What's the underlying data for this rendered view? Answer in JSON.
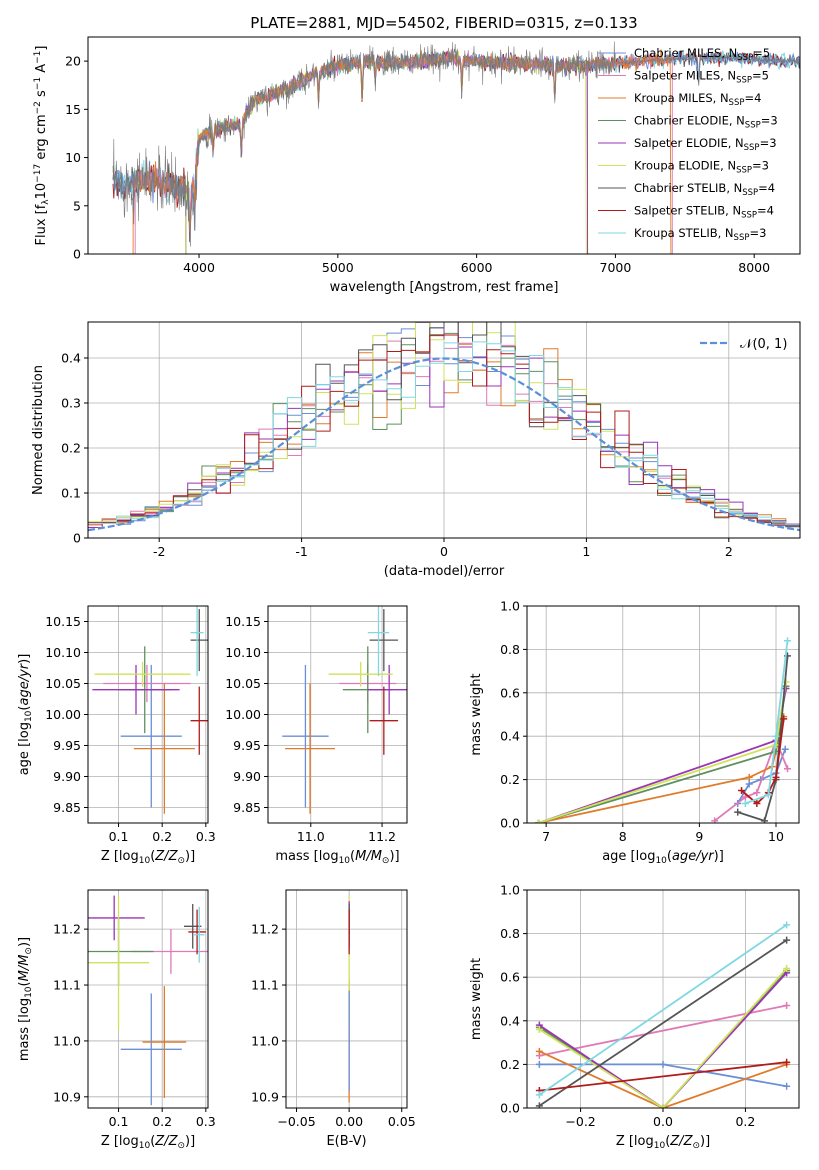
{
  "palette": {
    "chabrier_miles": "#6b8fd6",
    "salpeter_miles": "#e079b6",
    "kroupa_miles": "#e07b2a",
    "chabrier_elodie": "#5f8f5f",
    "salpeter_elodie": "#9a35b4",
    "kroupa_elodie": "#cfe35a",
    "chabrier_stelib": "#555555",
    "salpeter_stelib": "#b01c1c",
    "kroupa_stelib": "#7fd8e3",
    "normal_curve": "#5b8fd9"
  },
  "chart_data": [
    {
      "id": "spectrum",
      "type": "line",
      "title": "PLATE=2881, MJD=54502, FIBERID=0315, z=0.133",
      "xlabel": "wavelength [Angstrom, rest frame]",
      "ylabel_parts": [
        "Flux [f",
        "λ",
        "10",
        "−17",
        " erg cm",
        "−2",
        " s",
        "−1",
        " A",
        "−1",
        "]"
      ],
      "xlim": [
        3200,
        8330
      ],
      "ylim": [
        0,
        22.5
      ],
      "xticks": [
        4000,
        5000,
        6000,
        7000,
        8000
      ],
      "yticks": [
        0,
        5,
        10,
        15,
        20
      ],
      "legend_placement": "right",
      "legend": [
        {
          "key": "chabrier_miles",
          "base": "Chabrier MILES, N",
          "sub": "SSP",
          "tail": "=5"
        },
        {
          "key": "salpeter_miles",
          "base": "Salpeter MILES, N",
          "sub": "SSP",
          "tail": "=5"
        },
        {
          "key": "kroupa_miles",
          "base": "Kroupa MILES, N",
          "sub": "SSP",
          "tail": "=4"
        },
        {
          "key": "chabrier_elodie",
          "base": "Chabrier ELODIE, N",
          "sub": "SSP",
          "tail": "=3"
        },
        {
          "key": "salpeter_elodie",
          "base": "Salpeter ELODIE, N",
          "sub": "SSP",
          "tail": "=3"
        },
        {
          "key": "kroupa_elodie",
          "base": "Kroupa ELODIE, N",
          "sub": "SSP",
          "tail": "=3"
        },
        {
          "key": "chabrier_stelib",
          "base": "Chabrier STELIB, N",
          "sub": "SSP",
          "tail": "=4"
        },
        {
          "key": "salpeter_stelib",
          "base": "Salpeter STELIB, N",
          "sub": "SSP",
          "tail": "=4"
        },
        {
          "key": "kroupa_stelib",
          "base": "Kroupa STELIB, N",
          "sub": "SSP",
          "tail": "=3"
        }
      ],
      "continuum": [
        [
          3380,
          7.4
        ],
        [
          3500,
          7.2
        ],
        [
          3600,
          7.6
        ],
        [
          3700,
          7.5
        ],
        [
          3800,
          7.0
        ],
        [
          3900,
          6.8
        ],
        [
          3950,
          6.2
        ],
        [
          4000,
          12.0
        ],
        [
          4100,
          12.8
        ],
        [
          4200,
          13.2
        ],
        [
          4300,
          13.5
        ],
        [
          4400,
          16.0
        ],
        [
          4500,
          16.3
        ],
        [
          4600,
          17.0
        ],
        [
          4700,
          17.5
        ],
        [
          4800,
          18.5
        ],
        [
          4900,
          19.0
        ],
        [
          5000,
          19.5
        ],
        [
          5200,
          20.0
        ],
        [
          5400,
          19.8
        ],
        [
          5600,
          20.0
        ],
        [
          5800,
          20.3
        ],
        [
          6000,
          20.0
        ],
        [
          6200,
          19.8
        ],
        [
          6400,
          19.7
        ],
        [
          6600,
          19.5
        ],
        [
          6800,
          19.6
        ],
        [
          7000,
          19.8
        ],
        [
          7200,
          20.0
        ],
        [
          7400,
          20.2
        ],
        [
          7600,
          20.3
        ],
        [
          7800,
          20.4
        ],
        [
          8000,
          20.2
        ],
        [
          8200,
          20.0
        ],
        [
          8330,
          20.1
        ]
      ],
      "absorption": [
        [
          3934,
          5
        ],
        [
          3969,
          4.5
        ],
        [
          4102,
          2.5
        ],
        [
          4305,
          3.5
        ],
        [
          4861,
          3.0
        ],
        [
          5175,
          4.5
        ],
        [
          5270,
          2
        ],
        [
          5893,
          3.5
        ],
        [
          6563,
          3.5
        ],
        [
          7600,
          3
        ]
      ],
      "edges": [
        {
          "key": "kroupa_miles",
          "start": 3525,
          "end": 7400
        },
        {
          "key": "salpeter_miles",
          "start": 3540,
          "end": 7410
        },
        {
          "key": "kroupa_elodie",
          "start": 3905,
          "end": 6790
        },
        {
          "key": "chabrier_elodie",
          "start": 3905,
          "end": 6800
        },
        {
          "key": "salpeter_elodie",
          "start": 3905,
          "end": 6800
        },
        {
          "key": "chabrier_stelib",
          "start": 3380,
          "end": 8330
        },
        {
          "key": "salpeter_stelib",
          "start": 3380,
          "end": 8330
        },
        {
          "key": "kroupa_stelib",
          "start": 3380,
          "end": 8330
        }
      ]
    },
    {
      "id": "residuals",
      "type": "bar",
      "xlabel": "(data-model)/error",
      "ylabel": "Normed distribution",
      "xlim": [
        -2.5,
        2.5
      ],
      "ylim": [
        0,
        0.48
      ],
      "xticks": [
        -2,
        -1,
        0,
        1,
        2
      ],
      "yticks": [
        0.0,
        0.1,
        0.2,
        0.3,
        0.4
      ],
      "grid": true,
      "legend_placement": "top-right",
      "normal_label": "𝒩(0, 1)",
      "bin_width": 0.1
    },
    {
      "id": "z_age",
      "type": "scatter",
      "xlabel_parts": [
        "Z [log",
        "10",
        "(",
        "Z/Z",
        "⊙",
        ")]"
      ],
      "ylabel_parts": [
        "age  [log",
        "10",
        "(",
        "age/yr",
        ")]"
      ],
      "xlim": [
        0.03,
        0.305
      ],
      "ylim": [
        9.825,
        10.175
      ],
      "xticks": [
        "0.1",
        "0.2",
        "0.3"
      ],
      "yticks": [
        "9.85",
        "9.90",
        "9.95",
        "10.00",
        "10.05",
        "10.10",
        "10.15"
      ],
      "grid": true,
      "points": [
        {
          "key": "chabrier_miles",
          "x": 0.175,
          "y": 9.965,
          "xerr": 0.07,
          "yerr": 0.115
        },
        {
          "key": "kroupa_miles",
          "x": 0.205,
          "y": 9.945,
          "xerr": 0.07,
          "yerr": 0.105
        },
        {
          "key": "salpeter_miles",
          "x": 0.165,
          "y": 10.05,
          "xerr": 0.1,
          "yerr": 0.03
        },
        {
          "key": "chabrier_elodie",
          "x": 0.16,
          "y": 10.04,
          "xerr": 0.06,
          "yerr": 0.07
        },
        {
          "key": "salpeter_elodie",
          "x": 0.14,
          "y": 10.04,
          "xerr": 0.1,
          "yerr": 0.04
        },
        {
          "key": "kroupa_elodie",
          "x": 0.155,
          "y": 10.065,
          "xerr": 0.11,
          "yerr": 0.02
        },
        {
          "key": "chabrier_stelib",
          "x": 0.285,
          "y": 10.12,
          "xerr": 0.02,
          "yerr": 0.05
        },
        {
          "key": "salpeter_stelib",
          "x": 0.285,
          "y": 9.99,
          "xerr": 0.02,
          "yerr": 0.055
        },
        {
          "key": "kroupa_stelib",
          "x": 0.28,
          "y": 10.132,
          "xerr": 0.015,
          "yerr": 0.07
        }
      ]
    },
    {
      "id": "mass_age",
      "type": "scatter",
      "xlabel_parts": [
        "mass [log",
        "10",
        "(",
        "M/M",
        "⊙",
        ")]"
      ],
      "xlim": [
        10.88,
        11.27
      ],
      "ylim": [
        9.825,
        10.175
      ],
      "xticks": [
        "11.0",
        "11.2"
      ],
      "yticks": [
        "9.85",
        "9.90",
        "9.95",
        "10.00",
        "10.05",
        "10.10",
        "10.15"
      ],
      "grid": true,
      "points": [
        {
          "key": "chabrier_miles",
          "x": 10.985,
          "y": 9.965,
          "xerr": 0.065,
          "yerr": 0.115
        },
        {
          "key": "kroupa_miles",
          "x": 10.998,
          "y": 9.945,
          "xerr": 0.07,
          "yerr": 0.105
        },
        {
          "key": "salpeter_miles",
          "x": 11.16,
          "y": 10.05,
          "xerr": 0.08,
          "yerr": 0.03
        },
        {
          "key": "chabrier_elodie",
          "x": 11.16,
          "y": 10.04,
          "xerr": 0.07,
          "yerr": 0.07
        },
        {
          "key": "salpeter_elodie",
          "x": 11.22,
          "y": 10.04,
          "xerr": 0.06,
          "yerr": 0.04
        },
        {
          "key": "kroupa_elodie",
          "x": 11.14,
          "y": 10.065,
          "xerr": 0.09,
          "yerr": 0.02
        },
        {
          "key": "chabrier_stelib",
          "x": 11.205,
          "y": 10.12,
          "xerr": 0.04,
          "yerr": 0.05
        },
        {
          "key": "salpeter_stelib",
          "x": 11.205,
          "y": 9.99,
          "xerr": 0.04,
          "yerr": 0.055
        },
        {
          "key": "kroupa_stelib",
          "x": 11.19,
          "y": 10.132,
          "xerr": 0.03,
          "yerr": 0.07
        }
      ]
    },
    {
      "id": "age_weight",
      "type": "line",
      "xlabel_parts": [
        "age  [log",
        "10",
        "(",
        "age/yr",
        ")]"
      ],
      "ylabel": "mass weight",
      "xlim": [
        6.75,
        10.3
      ],
      "ylim": [
        0,
        1.0
      ],
      "xticks": [
        "7",
        "8",
        "9",
        "10"
      ],
      "yticks": [
        "0.0",
        "0.2",
        "0.4",
        "0.6",
        "0.8",
        "1.0"
      ],
      "grid": true,
      "series": [
        {
          "key": "chabrier_miles",
          "pts": [
            [
              9.5,
              0.09
            ],
            [
              9.65,
              0.18
            ],
            [
              9.8,
              0.2
            ],
            [
              10.0,
              0.23
            ],
            [
              10.12,
              0.34
            ]
          ]
        },
        {
          "key": "salpeter_miles",
          "pts": [
            [
              9.2,
              0.01
            ],
            [
              9.6,
              0.12
            ],
            [
              9.75,
              0.14
            ],
            [
              10.0,
              0.38
            ],
            [
              10.15,
              0.25
            ]
          ]
        },
        {
          "key": "kroupa_miles",
          "pts": [
            [
              6.9,
              0.0
            ],
            [
              9.65,
              0.21
            ],
            [
              9.95,
              0.26
            ],
            [
              10.1,
              0.49
            ]
          ]
        },
        {
          "key": "chabrier_elodie",
          "pts": [
            [
              6.9,
              0.0
            ],
            [
              10.0,
              0.33
            ],
            [
              10.13,
              0.63
            ]
          ]
        },
        {
          "key": "salpeter_elodie",
          "pts": [
            [
              6.9,
              0.0
            ],
            [
              10.0,
              0.38
            ],
            [
              10.13,
              0.62
            ]
          ]
        },
        {
          "key": "kroupa_elodie",
          "pts": [
            [
              6.9,
              0.0
            ],
            [
              10.0,
              0.36
            ],
            [
              10.13,
              0.65
            ]
          ]
        },
        {
          "key": "chabrier_stelib",
          "pts": [
            [
              9.5,
              0.05
            ],
            [
              9.85,
              0.01
            ],
            [
              10.0,
              0.2
            ],
            [
              10.15,
              0.77
            ]
          ]
        },
        {
          "key": "salpeter_stelib",
          "pts": [
            [
              9.55,
              0.15
            ],
            [
              9.75,
              0.09
            ],
            [
              9.9,
              0.14
            ],
            [
              10.0,
              0.21
            ],
            [
              10.1,
              0.48
            ]
          ]
        },
        {
          "key": "kroupa_stelib",
          "pts": [
            [
              9.6,
              0.09
            ],
            [
              9.9,
              0.13
            ],
            [
              10.0,
              0.4
            ],
            [
              10.15,
              0.84
            ]
          ]
        }
      ]
    },
    {
      "id": "z_mass",
      "type": "scatter",
      "xlabel_parts": [
        "Z [log",
        "10",
        "(",
        "Z/Z",
        "⊙",
        ")]"
      ],
      "ylabel_parts": [
        "mass [log",
        "10",
        "(",
        "M/M",
        "⊙",
        ")]"
      ],
      "xlim": [
        0.03,
        0.305
      ],
      "ylim": [
        10.88,
        11.27
      ],
      "xticks": [
        "0.1",
        "0.2",
        "0.3"
      ],
      "yticks": [
        "10.9",
        "11.0",
        "11.1",
        "11.2"
      ],
      "grid": true,
      "points": [
        {
          "key": "chabrier_miles",
          "x": 0.175,
          "y": 10.985,
          "xerr": 0.07,
          "yerr": 0.1
        },
        {
          "key": "kroupa_miles",
          "x": 0.205,
          "y": 10.998,
          "xerr": 0.05,
          "yerr": 0.1
        },
        {
          "key": "salpeter_miles",
          "x": 0.22,
          "y": 11.16,
          "xerr": 0.09,
          "yerr": 0.04
        },
        {
          "key": "chabrier_elodie",
          "x": 0.1,
          "y": 11.16,
          "xerr": 0.08,
          "yerr": 0.06
        },
        {
          "key": "salpeter_elodie",
          "x": 0.09,
          "y": 11.22,
          "xerr": 0.07,
          "yerr": 0.04
        },
        {
          "key": "kroupa_elodie",
          "x": 0.1,
          "y": 11.14,
          "xerr": 0.07,
          "yerr": 0.12
        },
        {
          "key": "chabrier_stelib",
          "x": 0.27,
          "y": 11.205,
          "xerr": 0.02,
          "yerr": 0.04
        },
        {
          "key": "salpeter_stelib",
          "x": 0.28,
          "y": 11.195,
          "xerr": 0.02,
          "yerr": 0.04
        },
        {
          "key": "kroupa_stelib",
          "x": 0.285,
          "y": 11.19,
          "xerr": 0.012,
          "yerr": 0.05
        }
      ]
    },
    {
      "id": "ebv_mass",
      "type": "scatter",
      "xlabel": "E(B-V)",
      "xlim": [
        -0.06,
        0.055
      ],
      "ylim": [
        10.88,
        11.27
      ],
      "xticks": [
        "−0.05",
        "0.00",
        "0.05"
      ],
      "yticks": [
        "10.9",
        "11.0",
        "11.1",
        "11.2"
      ],
      "grid": true,
      "points": [
        {
          "key": "kroupa_miles",
          "x": 0,
          "y": 11.0,
          "xerr": 0,
          "yerr": 0.11
        },
        {
          "key": "kroupa_elodie",
          "x": 0,
          "y": 11.14,
          "xerr": 0,
          "yerr": 0.12
        },
        {
          "key": "chabrier_miles",
          "x": 0,
          "y": 11.0,
          "xerr": 0,
          "yerr": 0.09
        },
        {
          "key": "salpeter_elodie",
          "x": 0,
          "y": 11.22,
          "xerr": 0,
          "yerr": 0.03
        },
        {
          "key": "chabrier_stelib",
          "x": 0,
          "y": 11.205,
          "xerr": 0,
          "yerr": 0.04
        },
        {
          "key": "salpeter_stelib",
          "x": 0,
          "y": 11.195,
          "xerr": 0,
          "yerr": 0.04
        }
      ]
    },
    {
      "id": "z_weight",
      "type": "line",
      "xlabel_parts": [
        "Z [log",
        "10",
        "(",
        "Z/Z",
        "⊙",
        ")]"
      ],
      "ylabel": "mass weight",
      "xlim": [
        -0.33,
        0.33
      ],
      "ylim": [
        0,
        1.0
      ],
      "xticks": [
        "−0.2",
        "0.0",
        "0.2"
      ],
      "yticks": [
        "0.0",
        "0.2",
        "0.4",
        "0.6",
        "0.8",
        "1.0"
      ],
      "grid": true,
      "series": [
        {
          "key": "chabrier_miles",
          "pts": [
            [
              -0.3,
              0.2
            ],
            [
              0.0,
              0.2
            ],
            [
              0.3,
              0.1
            ]
          ]
        },
        {
          "key": "salpeter_miles",
          "pts": [
            [
              -0.3,
              0.24
            ],
            [
              0.3,
              0.47
            ]
          ]
        },
        {
          "key": "kroupa_miles",
          "pts": [
            [
              -0.3,
              0.26
            ],
            [
              0.0,
              0.0
            ],
            [
              0.3,
              0.2
            ]
          ]
        },
        {
          "key": "chabrier_elodie",
          "pts": [
            [
              -0.3,
              0.37
            ],
            [
              0.0,
              0.0
            ],
            [
              0.3,
              0.63
            ]
          ]
        },
        {
          "key": "salpeter_elodie",
          "pts": [
            [
              -0.3,
              0.38
            ],
            [
              0.0,
              0.0
            ],
            [
              0.3,
              0.62
            ]
          ]
        },
        {
          "key": "kroupa_elodie",
          "pts": [
            [
              -0.3,
              0.36
            ],
            [
              0.0,
              0.0
            ],
            [
              0.3,
              0.64
            ]
          ]
        },
        {
          "key": "chabrier_stelib",
          "pts": [
            [
              -0.3,
              0.01
            ],
            [
              0.3,
              0.77
            ]
          ]
        },
        {
          "key": "salpeter_stelib",
          "pts": [
            [
              -0.3,
              0.08
            ],
            [
              0.3,
              0.21
            ]
          ]
        },
        {
          "key": "kroupa_stelib",
          "pts": [
            [
              -0.3,
              0.06
            ],
            [
              0.3,
              0.84
            ]
          ]
        }
      ]
    }
  ]
}
